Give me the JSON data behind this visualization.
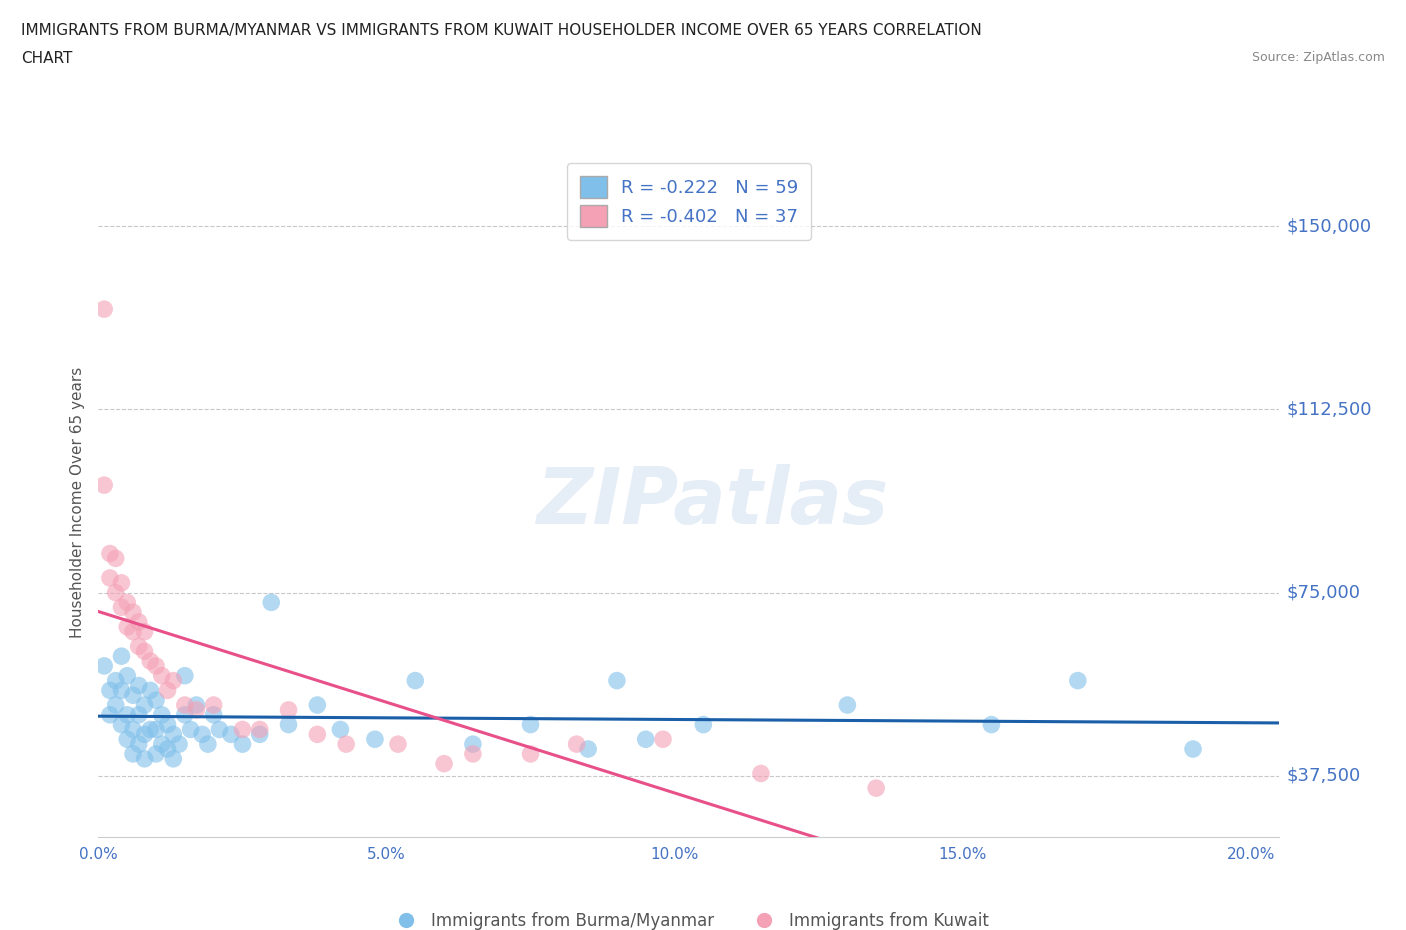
{
  "title_line1": "IMMIGRANTS FROM BURMA/MYANMAR VS IMMIGRANTS FROM KUWAIT HOUSEHOLDER INCOME OVER 65 YEARS CORRELATION",
  "title_line2": "CHART",
  "source": "Source: ZipAtlas.com",
  "ylabel": "Householder Income Over 65 years",
  "xlim": [
    0.0,
    0.205
  ],
  "ylim": [
    25000,
    162000
  ],
  "yticks": [
    37500,
    75000,
    112500,
    150000
  ],
  "ytick_labels": [
    "$37,500",
    "$75,000",
    "$112,500",
    "$150,000"
  ],
  "xticks": [
    0.0,
    0.05,
    0.1,
    0.15,
    0.2
  ],
  "xtick_labels": [
    "0.0%",
    "5.0%",
    "10.0%",
    "15.0%",
    "20.0%"
  ],
  "blue_color": "#7fbfea",
  "pink_color": "#f4a0b5",
  "trend_blue": "#1a5fa8",
  "trend_pink": "#e8508a",
  "background_color": "#ffffff",
  "grid_color": "#c8c8c8",
  "watermark": "ZIPatlas",
  "legend_R_blue": "R = -0.222",
  "legend_N_blue": "N = 59",
  "legend_R_pink": "R = -0.402",
  "legend_N_pink": "N = 37",
  "label_blue": "Immigrants from Burma/Myanmar",
  "label_pink": "Immigrants from Kuwait",
  "axis_color": "#4472c4",
  "blue_scatter_x": [
    0.001,
    0.002,
    0.002,
    0.003,
    0.003,
    0.004,
    0.004,
    0.004,
    0.005,
    0.005,
    0.005,
    0.006,
    0.006,
    0.006,
    0.007,
    0.007,
    0.007,
    0.008,
    0.008,
    0.008,
    0.009,
    0.009,
    0.01,
    0.01,
    0.01,
    0.011,
    0.011,
    0.012,
    0.012,
    0.013,
    0.013,
    0.014,
    0.015,
    0.015,
    0.016,
    0.017,
    0.018,
    0.019,
    0.02,
    0.021,
    0.023,
    0.025,
    0.028,
    0.03,
    0.033,
    0.038,
    0.042,
    0.048,
    0.055,
    0.065,
    0.075,
    0.085,
    0.09,
    0.095,
    0.105,
    0.13,
    0.155,
    0.17,
    0.19
  ],
  "blue_scatter_y": [
    60000,
    55000,
    50000,
    57000,
    52000,
    62000,
    55000,
    48000,
    58000,
    50000,
    45000,
    54000,
    47000,
    42000,
    56000,
    50000,
    44000,
    52000,
    46000,
    41000,
    55000,
    47000,
    53000,
    47000,
    42000,
    50000,
    44000,
    48000,
    43000,
    46000,
    41000,
    44000,
    58000,
    50000,
    47000,
    52000,
    46000,
    44000,
    50000,
    47000,
    46000,
    44000,
    46000,
    73000,
    48000,
    52000,
    47000,
    45000,
    57000,
    44000,
    48000,
    43000,
    57000,
    45000,
    48000,
    52000,
    48000,
    57000,
    43000
  ],
  "pink_scatter_x": [
    0.001,
    0.001,
    0.002,
    0.002,
    0.003,
    0.003,
    0.004,
    0.004,
    0.005,
    0.005,
    0.006,
    0.006,
    0.007,
    0.007,
    0.008,
    0.008,
    0.009,
    0.01,
    0.011,
    0.012,
    0.013,
    0.015,
    0.017,
    0.02,
    0.025,
    0.028,
    0.033,
    0.038,
    0.043,
    0.052,
    0.06,
    0.065,
    0.075,
    0.083,
    0.098,
    0.115,
    0.135
  ],
  "pink_scatter_y": [
    133000,
    97000,
    83000,
    78000,
    75000,
    82000,
    72000,
    77000,
    68000,
    73000,
    67000,
    71000,
    64000,
    69000,
    63000,
    67000,
    61000,
    60000,
    58000,
    55000,
    57000,
    52000,
    51000,
    52000,
    47000,
    47000,
    51000,
    46000,
    44000,
    44000,
    40000,
    42000,
    42000,
    44000,
    45000,
    38000,
    35000
  ]
}
